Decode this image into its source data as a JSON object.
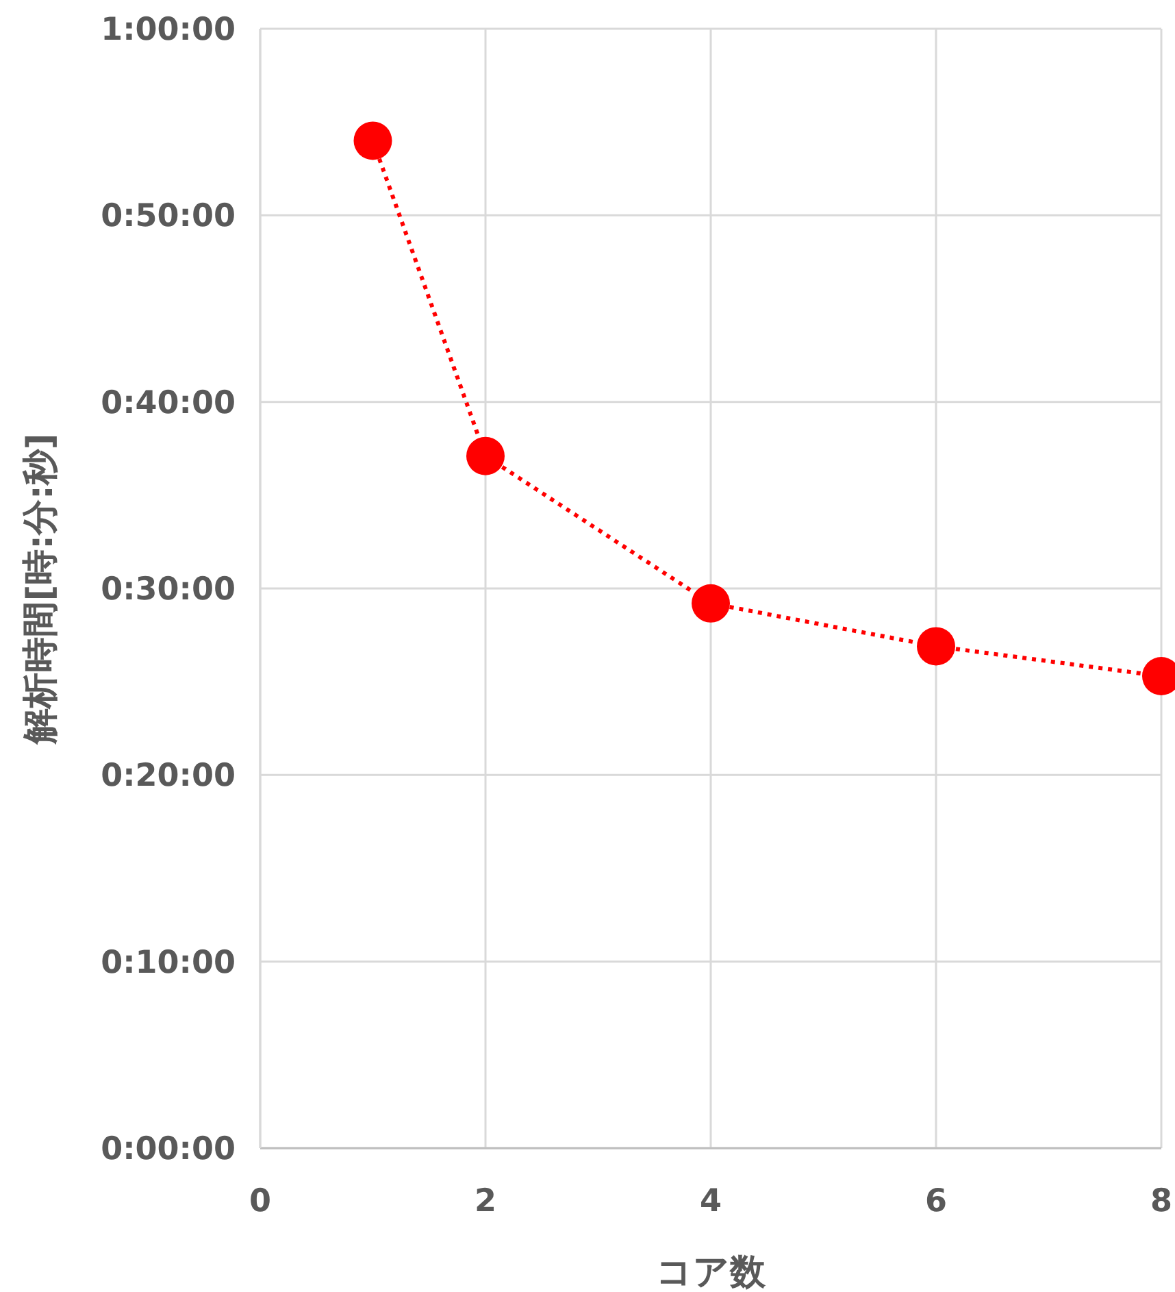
{
  "chart_data": {
    "type": "line",
    "xlabel": "コア数",
    "ylabel": "解析時間[時:分:秒]",
    "x": [
      1,
      2,
      4,
      6,
      8
    ],
    "series": [
      {
        "color": "#ff0000",
        "values": [
          54,
          37.1,
          29.2,
          26.9,
          25.3
        ]
      }
    ],
    "xlim": [
      0,
      8
    ],
    "xticks": [
      0,
      2,
      4,
      6,
      8
    ],
    "ylim": [
      0,
      60
    ],
    "yticks": [
      {
        "value": 0,
        "label": "0:00:00"
      },
      {
        "value": 10,
        "label": "0:10:00"
      },
      {
        "value": 20,
        "label": "0:20:00"
      },
      {
        "value": 30,
        "label": "0:30:00"
      },
      {
        "value": 40,
        "label": "0:40:00"
      },
      {
        "value": 50,
        "label": "0:50:00"
      },
      {
        "value": 60,
        "label": "1:00:00"
      }
    ],
    "grid": true,
    "marker": "circle",
    "line_style": "dotted"
  }
}
